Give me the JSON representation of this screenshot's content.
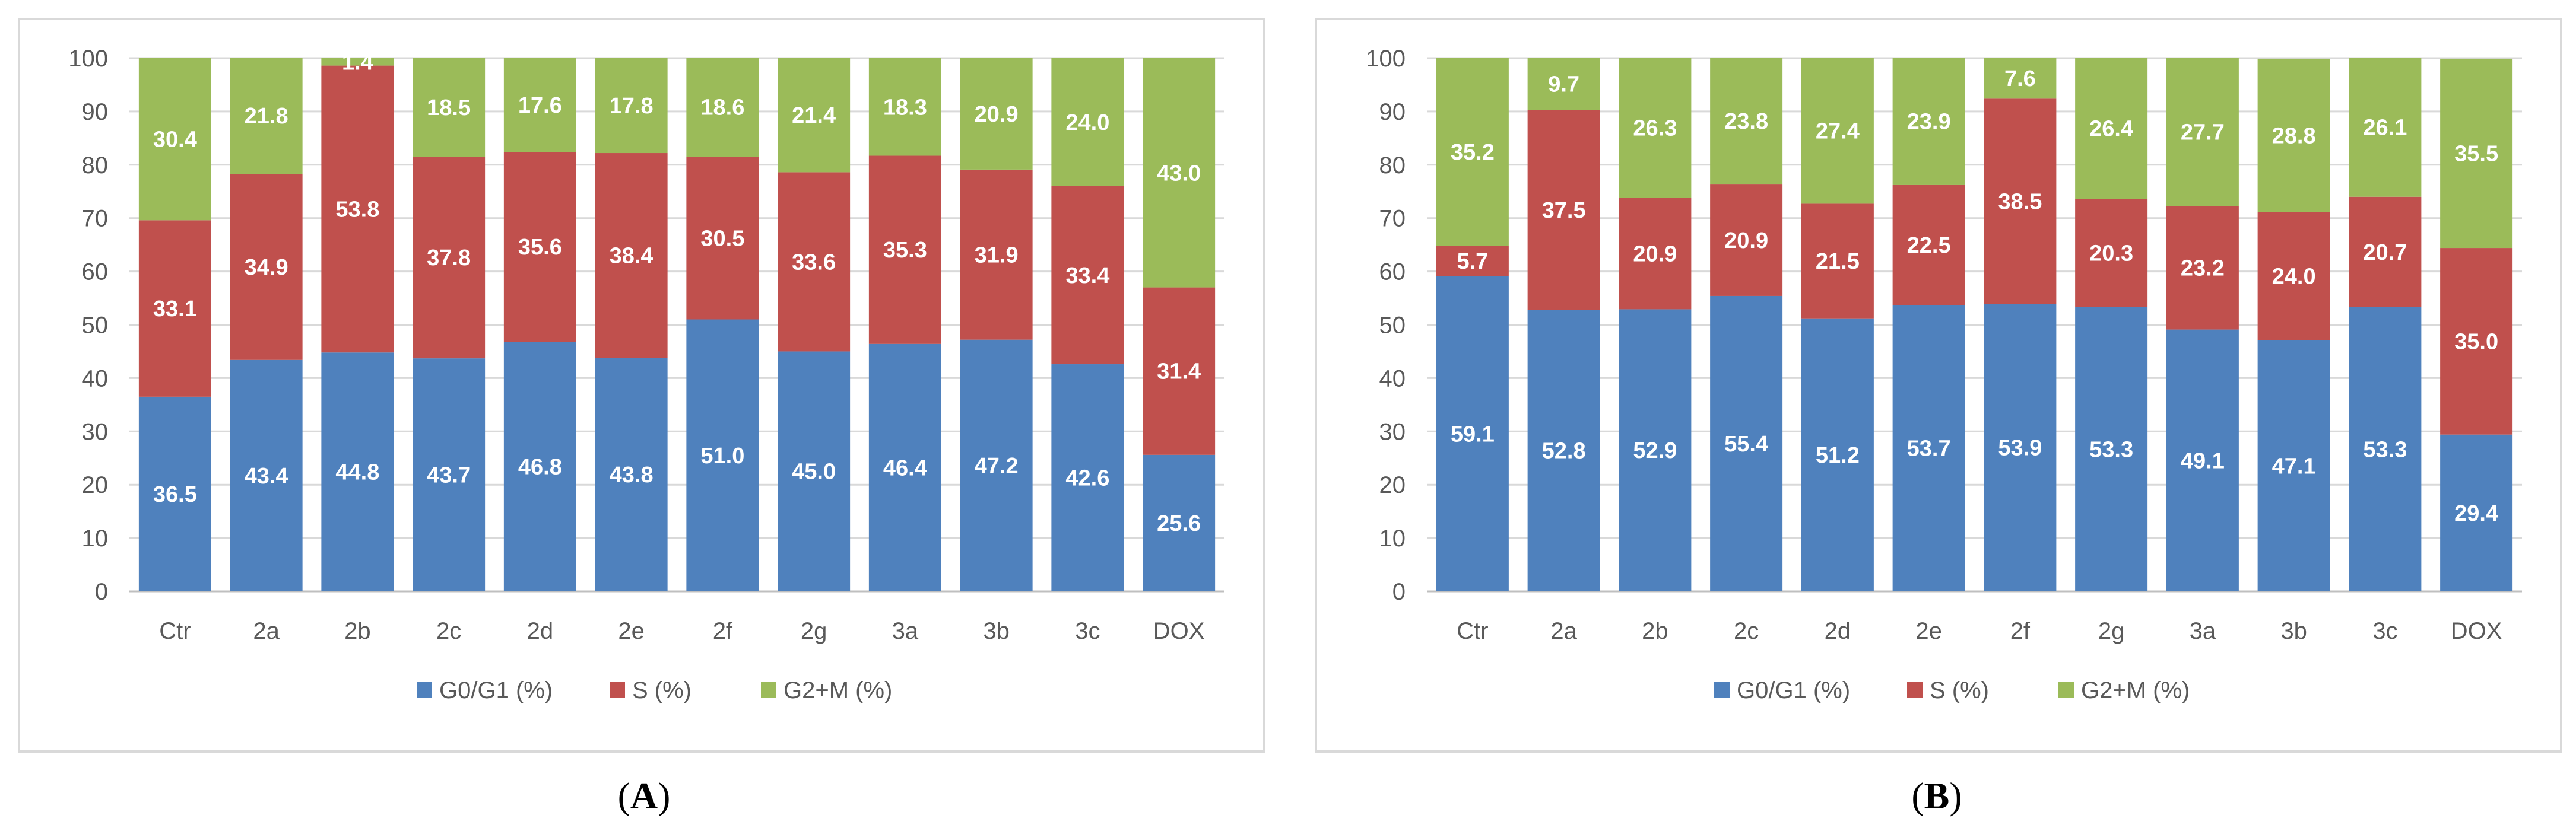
{
  "colors": {
    "g0g1": "#4f81bd",
    "s": "#c0504d",
    "g2m": "#9bbb59",
    "grid": "#d9d9d9",
    "axis": "#bfbfbf",
    "frame": "#d9d9d9"
  },
  "chart_data": [
    {
      "type": "bar",
      "stacked": true,
      "panel": "A",
      "categories": [
        "Ctr",
        "2a",
        "2b",
        "2c",
        "2d",
        "2e",
        "2f",
        "2g",
        "3a",
        "3b",
        "3c",
        "DOX"
      ],
      "ylim": [
        0,
        100
      ],
      "yticks": [
        "0",
        "10",
        "20",
        "30",
        "40",
        "50",
        "60",
        "70",
        "80",
        "90",
        "100"
      ],
      "legend_position": "bottom",
      "series": [
        {
          "name": "G0/G1  (%)",
          "color_key": "g0g1",
          "values": [
            36.5,
            43.4,
            44.8,
            43.7,
            46.8,
            43.8,
            51.0,
            45.0,
            46.4,
            47.2,
            42.6,
            25.6
          ],
          "labels": [
            "36.5",
            "43.4",
            "44.8",
            "43.7",
            "46.8",
            "43.8",
            "51.0",
            "45.0",
            "46.4",
            "47.2",
            "42.6",
            "25.6"
          ]
        },
        {
          "name": "S (%)",
          "color_key": "s",
          "values": [
            33.1,
            34.9,
            53.8,
            37.8,
            35.6,
            38.4,
            30.5,
            33.6,
            35.3,
            31.9,
            33.4,
            31.4
          ],
          "labels": [
            "33.1",
            "34.9",
            "53.8",
            "37.8",
            "35.6",
            "38.4",
            "30.5",
            "33.6",
            "35.3",
            "31.9",
            "33.4",
            "31.4"
          ]
        },
        {
          "name": "G2+M (%)",
          "color_key": "g2m",
          "values": [
            30.4,
            21.8,
            1.4,
            18.5,
            17.6,
            17.8,
            18.6,
            21.4,
            18.3,
            20.9,
            24.0,
            43.0
          ],
          "labels": [
            "30.4",
            "21.8",
            "1.4",
            "18.5",
            "17.6",
            "17.8",
            "18.6",
            "21.4",
            "18.3",
            "20.9",
            "24.0",
            "43.0"
          ]
        }
      ]
    },
    {
      "type": "bar",
      "stacked": true,
      "panel": "B",
      "categories": [
        "Ctr",
        "2a",
        "2b",
        "2c",
        "2d",
        "2e",
        "2f",
        "2g",
        "3a",
        "3b",
        "3c",
        "DOX"
      ],
      "ylim": [
        0,
        100
      ],
      "yticks": [
        "0",
        "10",
        "20",
        "30",
        "40",
        "50",
        "60",
        "70",
        "80",
        "90",
        "100"
      ],
      "legend_position": "bottom",
      "series": [
        {
          "name": "G0/G1  (%)",
          "color_key": "g0g1",
          "values": [
            59.1,
            52.8,
            52.9,
            55.4,
            51.2,
            53.7,
            53.9,
            53.3,
            49.1,
            47.1,
            53.3,
            29.4
          ],
          "labels": [
            "59.1",
            "52.8",
            "52.9",
            "55.4",
            "51.2",
            "53.7",
            "53.9",
            "53.3",
            "49.1",
            "47.1",
            "53.3",
            "29.4"
          ]
        },
        {
          "name": "S (%)",
          "color_key": "s",
          "values": [
            5.7,
            37.5,
            20.9,
            20.9,
            21.5,
            22.5,
            38.5,
            20.3,
            23.2,
            24.0,
            20.7,
            35.0
          ],
          "labels": [
            "5.7",
            "37.5",
            "20.9",
            "20.9",
            "21.5",
            "22.5",
            "38.5",
            "20.3",
            "23.2",
            "24.0",
            "20.7",
            "35.0"
          ]
        },
        {
          "name": "G2+M (%)",
          "color_key": "g2m",
          "values": [
            35.2,
            9.7,
            26.3,
            23.8,
            27.4,
            23.9,
            7.6,
            26.4,
            27.7,
            28.8,
            26.1,
            35.5
          ],
          "labels": [
            "35.2",
            "9.7",
            "26.3",
            "23.8",
            "27.4",
            "23.9",
            "7.6",
            "26.4",
            "27.7",
            "28.8",
            "26.1",
            "35.5"
          ]
        }
      ]
    }
  ],
  "panels": {
    "A": {
      "label_open": "(",
      "letter": "A",
      "label_close": ")"
    },
    "B": {
      "label_open": "(",
      "letter": "B",
      "label_close": ")"
    }
  }
}
